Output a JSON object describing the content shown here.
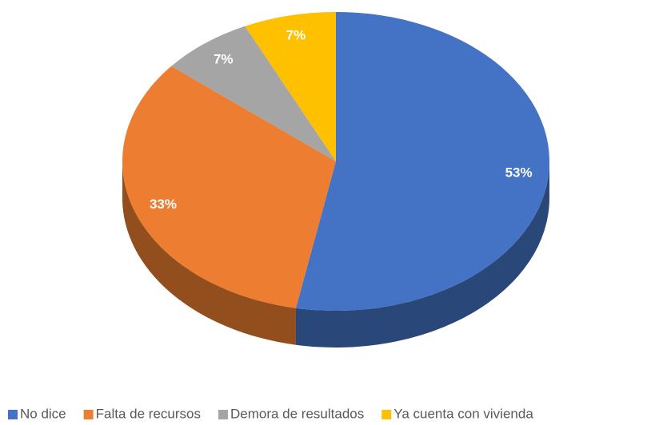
{
  "chart_data": {
    "type": "pie",
    "categories": [
      "No dice",
      "Falta de recursos",
      "Demora de resultados",
      "Ya cuenta con vivienda"
    ],
    "values": [
      53,
      33,
      7,
      7
    ],
    "value_labels": [
      "53%",
      "33%",
      "7%",
      "7%"
    ],
    "colors": [
      "#4472c4",
      "#ed7d31",
      "#a5a5a5",
      "#ffc000"
    ],
    "legend": "bottom"
  }
}
